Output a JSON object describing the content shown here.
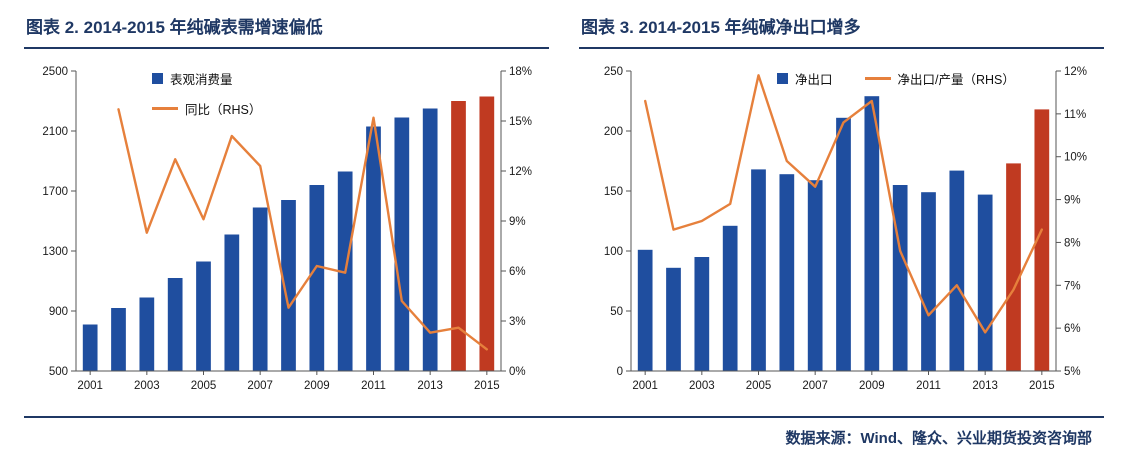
{
  "page": {
    "footer": {
      "source": "数据来源：Wind、隆众、兴业期货投资咨询部"
    }
  },
  "colors": {
    "bar_blue": "#1F4E9F",
    "bar_red": "#C03A21",
    "line_orange": "#E6803C",
    "navy": "#1F3864",
    "axis": "#555555"
  },
  "chart_data": [
    {
      "type": "bar",
      "title": "图表 2. 2014-2015 年纯碱表需增速偏低",
      "years": [
        2001,
        2002,
        2003,
        2004,
        2005,
        2006,
        2007,
        2008,
        2009,
        2010,
        2011,
        2012,
        2013,
        2014,
        2015
      ],
      "x_axis": {
        "tick_indices": [
          0,
          2,
          4,
          6,
          8,
          10,
          12,
          14
        ],
        "tick_labels": [
          "2001",
          "2003",
          "2005",
          "2007",
          "2009",
          "2011",
          "2013",
          "2015"
        ]
      },
      "left_axis": {
        "min": 500,
        "max": 2500,
        "tick_values": [
          500,
          900,
          1300,
          1700,
          2100,
          2500
        ],
        "tick_labels": [
          "500",
          "900",
          "1300",
          "1700",
          "2100",
          "2500"
        ]
      },
      "right_axis": {
        "min": 0,
        "max": 18,
        "tick_values": [
          0,
          3,
          6,
          9,
          12,
          15,
          18
        ],
        "tick_labels": [
          "0%",
          "3%",
          "6%",
          "9%",
          "12%",
          "15%",
          "18%"
        ]
      },
      "legend_layout": "vertical",
      "series": [
        {
          "name": "表观消费量",
          "type": "bar",
          "axis": "left",
          "values": [
            810,
            920,
            990,
            1120,
            1230,
            1410,
            1590,
            1640,
            1740,
            1830,
            2130,
            2190,
            2250,
            2300,
            2330
          ],
          "highlight_years": [
            2014,
            2015
          ]
        },
        {
          "name": "同比（RHS）",
          "type": "line",
          "axis": "right",
          "values": [
            null,
            15.7,
            8.3,
            12.7,
            9.1,
            14.1,
            12.3,
            3.8,
            6.3,
            5.9,
            15.2,
            4.2,
            2.3,
            2.6,
            1.3
          ]
        }
      ]
    },
    {
      "type": "bar",
      "title": "图表 3. 2014-2015 年纯碱净出口增多",
      "years": [
        2001,
        2002,
        2003,
        2004,
        2005,
        2006,
        2007,
        2008,
        2009,
        2010,
        2011,
        2012,
        2013,
        2014,
        2015
      ],
      "x_axis": {
        "tick_indices": [
          0,
          2,
          4,
          6,
          8,
          10,
          12,
          14
        ],
        "tick_labels": [
          "2001",
          "2003",
          "2005",
          "2007",
          "2009",
          "2011",
          "2013",
          "2015"
        ]
      },
      "left_axis": {
        "min": 0,
        "max": 250,
        "tick_values": [
          0,
          50,
          100,
          150,
          200,
          250
        ],
        "tick_labels": [
          "0",
          "50",
          "100",
          "150",
          "200",
          "250"
        ]
      },
      "right_axis": {
        "min": 5,
        "max": 12,
        "tick_values": [
          5,
          6,
          7,
          8,
          9,
          10,
          11,
          12
        ],
        "tick_labels": [
          "5%",
          "6%",
          "7%",
          "8%",
          "9%",
          "10%",
          "11%",
          "12%"
        ]
      },
      "legend_layout": "horizontal",
      "series": [
        {
          "name": "净出口",
          "type": "bar",
          "axis": "left",
          "values": [
            101,
            86,
            95,
            121,
            168,
            164,
            159,
            211,
            229,
            155,
            149,
            167,
            147,
            173,
            218
          ],
          "highlight_years": [
            2014,
            2015
          ]
        },
        {
          "name": "净出口/产量（RHS）",
          "type": "line",
          "axis": "right",
          "values": [
            11.3,
            8.3,
            8.5,
            8.9,
            11.9,
            9.9,
            9.3,
            10.8,
            11.3,
            7.8,
            6.3,
            7.0,
            5.9,
            6.9,
            8.3
          ]
        }
      ]
    }
  ]
}
